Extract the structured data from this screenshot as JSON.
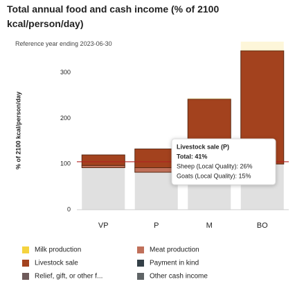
{
  "chart_data": {
    "type": "bar",
    "stacked": true,
    "title": "Total annual food and cash income (% of 2100 kcal/person/day)",
    "subtitle": "Reference year ending 2023-06-30",
    "y_label": "% of 2100 kcal/person/day",
    "categories": [
      "VP",
      "P",
      "M",
      "BO"
    ],
    "series": [
      {
        "color": "#e0e0e0",
        "values": [
          92,
          82,
          95,
          100
        ]
      },
      {
        "name": "Meat production",
        "color": "#c0705a",
        "values": [
          5,
          10,
          null,
          null
        ]
      },
      {
        "name": "Livestock sale",
        "color": "#a3421e",
        "values": [
          23,
          41,
          147,
          248
        ]
      },
      {
        "name": "Milk production",
        "color": "#f5d33f",
        "values": [
          null,
          null,
          3,
          20
        ]
      },
      {
        "name": "Payment in kind",
        "color": "#344047",
        "values": [
          null,
          null,
          null,
          null
        ]
      },
      {
        "name": "Relief, gift, or other f...",
        "color": "#6e5a5a",
        "values": [
          null,
          null,
          null,
          null
        ]
      },
      {
        "name": "Other cash income",
        "color": "#5f6466",
        "values": [
          null,
          null,
          null,
          null
        ]
      }
    ],
    "legend_order": [
      3,
      1,
      2,
      4,
      5,
      6
    ],
    "ylim": [
      0,
      330
    ],
    "yticks": [
      0,
      100,
      200,
      300
    ],
    "reference_line": 105,
    "reference_color": "#b22222"
  },
  "tooltip": {
    "title": "Livestock sale (P)",
    "lines": [
      "Total: 41%",
      "Sheep (Local Quality): 26%",
      "Goats (Local Quality): 15%"
    ]
  }
}
